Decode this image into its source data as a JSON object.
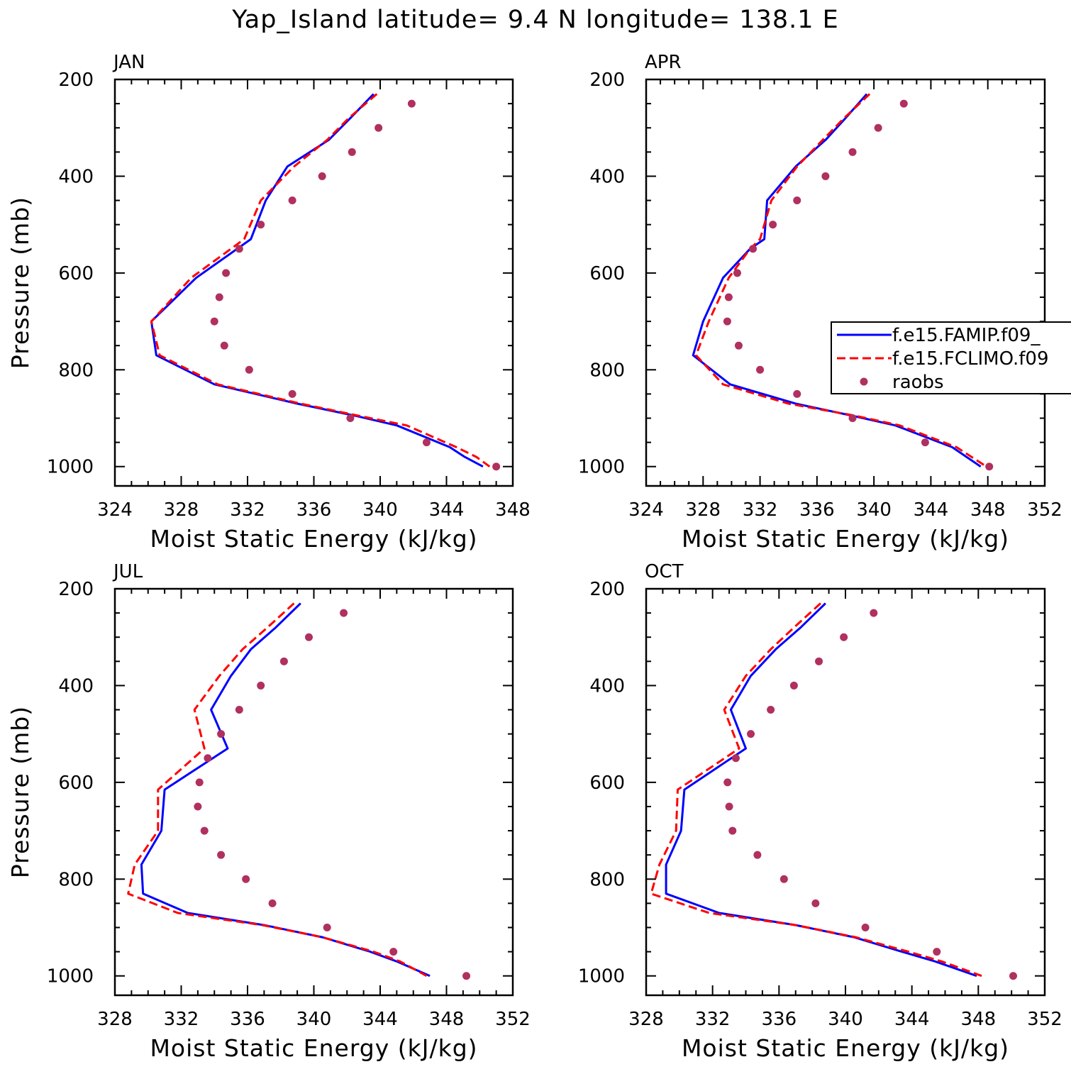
{
  "figure": {
    "title": "Yap_Island  latitude= 9.4 N longitude= 138.1 E"
  },
  "colors": {
    "famip": "#0000ff",
    "fclimo": "#ff0000",
    "raobs": "#b03060"
  },
  "chart_data": [
    {
      "type": "line",
      "panel_label": "JAN",
      "xlabel": "Moist Static Energy (kJ/kg)",
      "ylabel": "Pressure (mb)",
      "xlim": [
        324,
        348
      ],
      "ylim": [
        1000,
        200
      ],
      "y_inverted": true,
      "xticks": [
        324,
        328,
        332,
        336,
        340,
        344,
        348
      ],
      "yticks": [
        200,
        400,
        600,
        800,
        1000
      ],
      "legend": null,
      "series": [
        {
          "name": "f.e15.FAMIP.f09_",
          "style": "solid",
          "x": [
            339.6,
            338.2,
            336.9,
            334.4,
            333.1,
            332.2,
            328.9,
            326.2,
            326.5,
            330.0,
            335.0,
            338.5,
            341.0,
            344.2,
            345.1,
            346.2
          ],
          "y": [
            230,
            280,
            325,
            380,
            450,
            530,
            610,
            700,
            770,
            830,
            870,
            895,
            915,
            960,
            980,
            1000
          ]
        },
        {
          "name": "f.e15.FCLIMO.f09",
          "style": "dashed",
          "x": [
            339.8,
            338.1,
            336.8,
            334.8,
            332.8,
            331.8,
            328.6,
            326.2,
            326.7,
            330.2,
            335.2,
            338.7,
            341.6,
            344.6,
            345.8,
            346.6
          ],
          "y": [
            230,
            280,
            325,
            380,
            450,
            530,
            610,
            700,
            770,
            830,
            870,
            895,
            915,
            960,
            980,
            1000
          ]
        },
        {
          "name": "raobs",
          "style": "markers",
          "x": [
            341.9,
            339.9,
            338.3,
            336.5,
            334.7,
            332.8,
            331.5,
            330.7,
            330.3,
            330.0,
            330.6,
            332.1,
            334.7,
            338.2,
            342.8,
            347.0
          ],
          "y": [
            250,
            300,
            350,
            400,
            450,
            500,
            550,
            600,
            650,
            700,
            750,
            800,
            850,
            900,
            950,
            1000
          ]
        }
      ]
    },
    {
      "type": "line",
      "panel_label": "APR",
      "xlabel": "Moist Static Energy (kJ/kg)",
      "ylabel": "",
      "xlim": [
        324,
        352
      ],
      "ylim": [
        1000,
        200
      ],
      "y_inverted": true,
      "xticks": [
        324,
        328,
        332,
        336,
        340,
        344,
        348,
        352
      ],
      "yticks": [
        200,
        400,
        600,
        800,
        1000
      ],
      "legend": [
        "f.e15.FAMIP.f09_",
        "f.e15.FCLIMO.f09",
        "raobs"
      ],
      "series": [
        {
          "name": "f.e15.FAMIP.f09_",
          "style": "solid",
          "x": [
            339.5,
            338.0,
            336.6,
            334.5,
            332.5,
            332.3,
            331.3,
            329.4,
            328.0,
            327.3,
            329.9,
            334.5,
            338.5,
            341.5,
            345.5,
            347.5
          ],
          "y": [
            230,
            280,
            325,
            380,
            450,
            530,
            550,
            610,
            700,
            770,
            830,
            870,
            895,
            915,
            960,
            1000
          ]
        },
        {
          "name": "f.e15.FCLIMO.f09",
          "style": "dashed",
          "x": [
            339.7,
            337.9,
            336.4,
            334.6,
            332.8,
            332.0,
            331.3,
            329.8,
            328.4,
            327.5,
            329.4,
            334.0,
            338.7,
            341.8,
            345.8,
            347.9
          ],
          "y": [
            230,
            280,
            325,
            380,
            450,
            530,
            550,
            610,
            700,
            770,
            830,
            870,
            895,
            915,
            960,
            1000
          ]
        },
        {
          "name": "raobs",
          "style": "markers",
          "x": [
            342.1,
            340.3,
            338.5,
            336.6,
            334.6,
            332.9,
            331.5,
            330.4,
            329.8,
            329.7,
            330.5,
            332.0,
            334.6,
            338.5,
            343.6,
            348.1
          ],
          "y": [
            250,
            300,
            350,
            400,
            450,
            500,
            550,
            600,
            650,
            700,
            750,
            800,
            850,
            900,
            950,
            1000
          ]
        }
      ]
    },
    {
      "type": "line",
      "panel_label": "JUL",
      "xlabel": "Moist Static Energy (kJ/kg)",
      "ylabel": "Pressure (mb)",
      "xlim": [
        328,
        352
      ],
      "ylim": [
        1000,
        200
      ],
      "y_inverted": true,
      "xticks": [
        328,
        332,
        336,
        340,
        344,
        348,
        352
      ],
      "yticks": [
        200,
        400,
        600,
        800,
        1000
      ],
      "legend": null,
      "series": [
        {
          "name": "f.e15.FAMIP.f09_",
          "style": "solid",
          "x": [
            339.2,
            337.7,
            336.2,
            335.0,
            333.8,
            334.8,
            331.0,
            330.8,
            329.6,
            329.7,
            332.4,
            337.0,
            340.5,
            343.4,
            345.0,
            347.0
          ],
          "y": [
            230,
            280,
            325,
            380,
            450,
            530,
            615,
            700,
            770,
            830,
            870,
            895,
            920,
            950,
            970,
            1000
          ]
        },
        {
          "name": "f.e15.FCLIMO.f09",
          "style": "dashed",
          "x": [
            338.8,
            337.2,
            335.7,
            334.3,
            332.8,
            333.4,
            330.6,
            330.6,
            329.2,
            328.8,
            331.8,
            336.9,
            340.5,
            343.6,
            345.2,
            346.8
          ],
          "y": [
            230,
            280,
            325,
            380,
            450,
            530,
            615,
            700,
            770,
            830,
            870,
            895,
            920,
            950,
            970,
            1000
          ]
        },
        {
          "name": "raobs",
          "style": "markers",
          "x": [
            341.8,
            339.7,
            338.2,
            336.8,
            335.5,
            334.4,
            333.6,
            333.1,
            333.0,
            333.4,
            334.4,
            335.9,
            337.5,
            340.8,
            344.8,
            349.2
          ],
          "y": [
            250,
            300,
            350,
            400,
            450,
            500,
            550,
            600,
            650,
            700,
            750,
            800,
            850,
            900,
            950,
            1000
          ]
        }
      ]
    },
    {
      "type": "line",
      "panel_label": "OCT",
      "xlabel": "Moist Static Energy (kJ/kg)",
      "ylabel": "",
      "xlim": [
        328,
        352
      ],
      "ylim": [
        1000,
        200
      ],
      "y_inverted": true,
      "xticks": [
        328,
        332,
        336,
        340,
        344,
        348,
        352
      ],
      "yticks": [
        200,
        400,
        600,
        800,
        1000
      ],
      "legend": null,
      "series": [
        {
          "name": "f.e15.FAMIP.f09_",
          "style": "solid",
          "x": [
            338.8,
            337.3,
            335.8,
            334.3,
            333.1,
            334.0,
            330.3,
            330.1,
            329.2,
            329.2,
            332.4,
            337.0,
            340.5,
            343.4,
            345.4,
            347.9
          ],
          "y": [
            230,
            280,
            325,
            380,
            450,
            530,
            615,
            700,
            770,
            830,
            870,
            895,
            920,
            950,
            970,
            1000
          ]
        },
        {
          "name": "f.e15.FCLIMO.f09",
          "style": "dashed",
          "x": [
            338.5,
            336.9,
            335.5,
            334.0,
            332.7,
            333.6,
            329.9,
            329.8,
            328.8,
            328.3,
            331.8,
            337.0,
            340.6,
            343.8,
            345.8,
            348.2
          ],
          "y": [
            230,
            280,
            325,
            380,
            450,
            530,
            615,
            700,
            770,
            830,
            870,
            895,
            920,
            950,
            970,
            1000
          ]
        },
        {
          "name": "raobs",
          "style": "markers",
          "x": [
            341.7,
            339.9,
            338.4,
            336.9,
            335.5,
            334.3,
            333.4,
            332.9,
            333.0,
            333.2,
            334.7,
            336.3,
            338.2,
            341.2,
            345.5,
            350.1
          ],
          "y": [
            250,
            300,
            350,
            400,
            450,
            500,
            550,
            600,
            650,
            700,
            750,
            800,
            850,
            900,
            950,
            1000
          ]
        }
      ]
    }
  ]
}
